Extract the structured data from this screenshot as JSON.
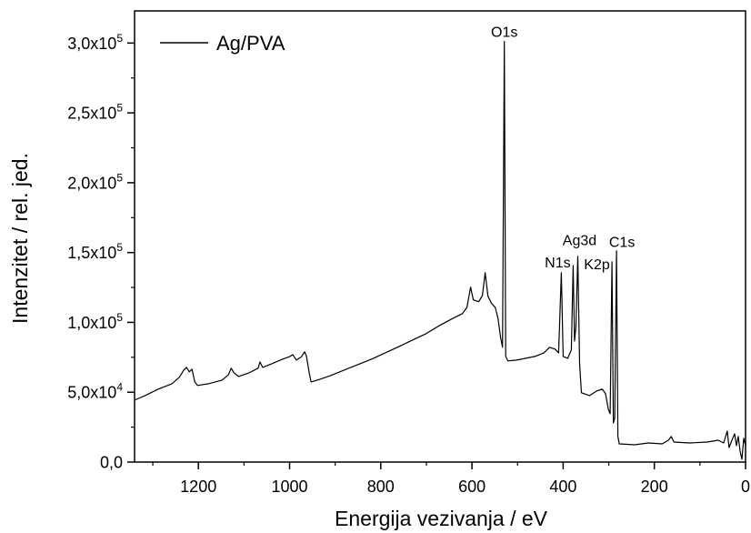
{
  "chart_data": {
    "type": "line",
    "xlabel": "Energija vezivanja / eV",
    "ylabel": "Intenzitet / rel. jed.",
    "xlim": [
      1340,
      0
    ],
    "ylim": [
      0,
      323000
    ],
    "grid": false,
    "legend": {
      "position": "top-left"
    },
    "x_ticks": [
      1200,
      1000,
      800,
      600,
      400,
      200,
      0
    ],
    "x_tick_labels": [
      "1200",
      "1000",
      "800",
      "600",
      "400",
      "200",
      "0"
    ],
    "x_minor_ticks": [
      1300,
      1100,
      900,
      700,
      500,
      300,
      100
    ],
    "y_ticks": [
      0,
      50000,
      100000,
      150000,
      200000,
      250000,
      300000
    ],
    "y_tick_labels": [
      {
        "base": "0,0",
        "sup": ""
      },
      {
        "base": "5,0x10",
        "sup": "4"
      },
      {
        "base": "1,0x10",
        "sup": "5"
      },
      {
        "base": "1,5x10",
        "sup": "5"
      },
      {
        "base": "2,0x10",
        "sup": "5"
      },
      {
        "base": "2,5x10",
        "sup": "5"
      },
      {
        "base": "3,0x10",
        "sup": "5"
      }
    ],
    "y_minor_ticks": [
      25000,
      75000,
      125000,
      175000,
      225000,
      275000
    ],
    "series": [
      {
        "name": "Ag/PVA",
        "color": "#000000",
        "x": [
          1340,
          1317,
          1288,
          1258,
          1242,
          1232,
          1226,
          1220,
          1214,
          1208,
          1202,
          1178,
          1148,
          1134,
          1128,
          1122,
          1112,
          1089,
          1069,
          1065,
          1059,
          1039,
          1015,
          999,
          993,
          985,
          975,
          967,
          963,
          957,
          953,
          939,
          910,
          880,
          850,
          820,
          790,
          760,
          730,
          701,
          671,
          641,
          621,
          611,
          603,
          597,
          585,
          577,
          571,
          565,
          557,
          549,
          543,
          537,
          533,
          529,
          526,
          521,
          502,
          482,
          462,
          442,
          430,
          418,
          410,
          404,
          400,
          390,
          382,
          378,
          375,
          372,
          368,
          364,
          360,
          342,
          326,
          314,
          307,
          301,
          297,
          293,
          290,
          287,
          283,
          280,
          277,
          243,
          213,
          183,
          169,
          163,
          157,
          123,
          84,
          60,
          48,
          40,
          36,
          30,
          24,
          20,
          16,
          12,
          8,
          4,
          0
        ],
        "y": [
          44300,
          47600,
          52200,
          56100,
          60600,
          65900,
          67800,
          64600,
          66500,
          57400,
          54800,
          56100,
          58700,
          62600,
          67200,
          63900,
          61300,
          63900,
          67200,
          71700,
          67800,
          70400,
          73700,
          75600,
          76900,
          73000,
          75000,
          78900,
          75600,
          63900,
          57400,
          58700,
          61900,
          65900,
          69800,
          73700,
          78200,
          82800,
          87400,
          91900,
          97800,
          103000,
          106300,
          110800,
          125200,
          116100,
          114800,
          119300,
          135600,
          118700,
          113500,
          110800,
          103000,
          88700,
          82200,
          301200,
          75600,
          72400,
          73000,
          74300,
          75600,
          78200,
          82200,
          80900,
          78200,
          135600,
          75600,
          74300,
          80200,
          140800,
          86700,
          96500,
          147400,
          70400,
          49600,
          47600,
          50900,
          52200,
          48900,
          37800,
          34600,
          143400,
          28000,
          31300,
          151300,
          18300,
          13000,
          12400,
          13700,
          13000,
          15600,
          18300,
          14300,
          13700,
          14300,
          15600,
          13700,
          22200,
          10400,
          15600,
          20200,
          11700,
          18300,
          7800,
          2000,
          17000,
          11700
        ]
      }
    ],
    "annotations": [
      {
        "text": "O1s",
        "x": 529,
        "y": 304500
      },
      {
        "text": "N1s",
        "x": 412,
        "y": 139500
      },
      {
        "text": "Ag3d",
        "x": 364,
        "y": 155200
      },
      {
        "text": "K2p",
        "x": 326,
        "y": 138200
      },
      {
        "text": "C1s",
        "x": 271,
        "y": 153900
      }
    ]
  }
}
